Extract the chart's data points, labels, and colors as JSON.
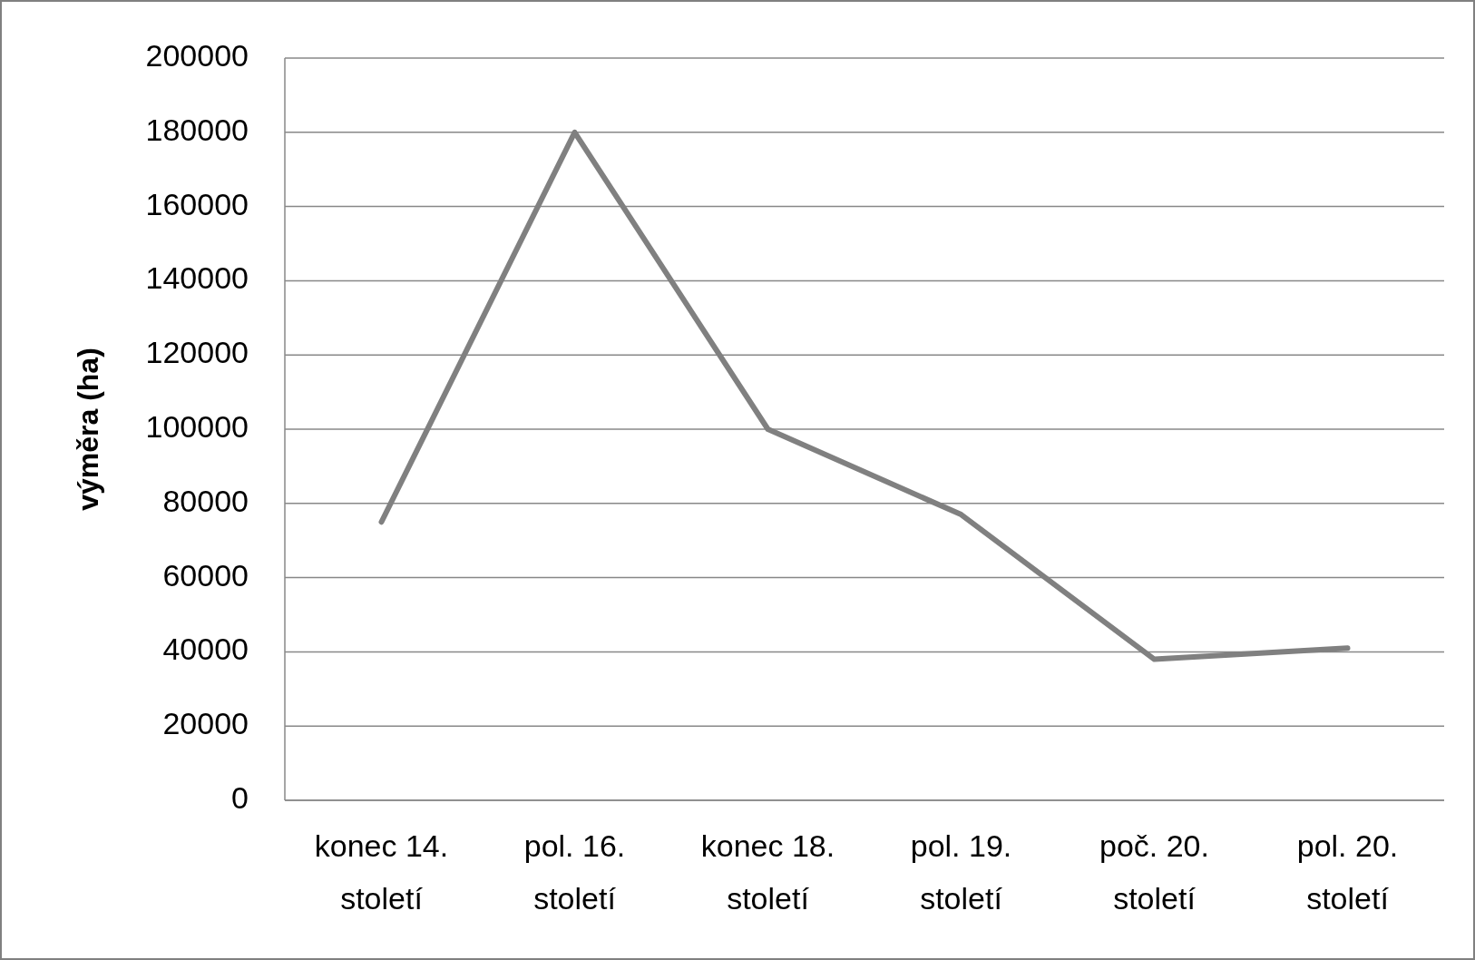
{
  "chart_data": {
    "type": "line",
    "ylabel": "výměra (ha)",
    "categories": [
      "konec 14. století",
      "pol. 16. století",
      "konec 18. století",
      "pol. 19. století",
      "poč. 20. století",
      "pol. 20. století"
    ],
    "series": [
      {
        "color": "#808080",
        "values": [
          75000,
          180000,
          100000,
          77000,
          38000,
          41000
        ]
      }
    ],
    "ylim": [
      0,
      200000
    ],
    "yticks": [
      0,
      20000,
      40000,
      60000,
      80000,
      100000,
      120000,
      140000,
      160000,
      180000,
      200000
    ],
    "grid": "y",
    "marker": "none",
    "line_style": "solid"
  }
}
